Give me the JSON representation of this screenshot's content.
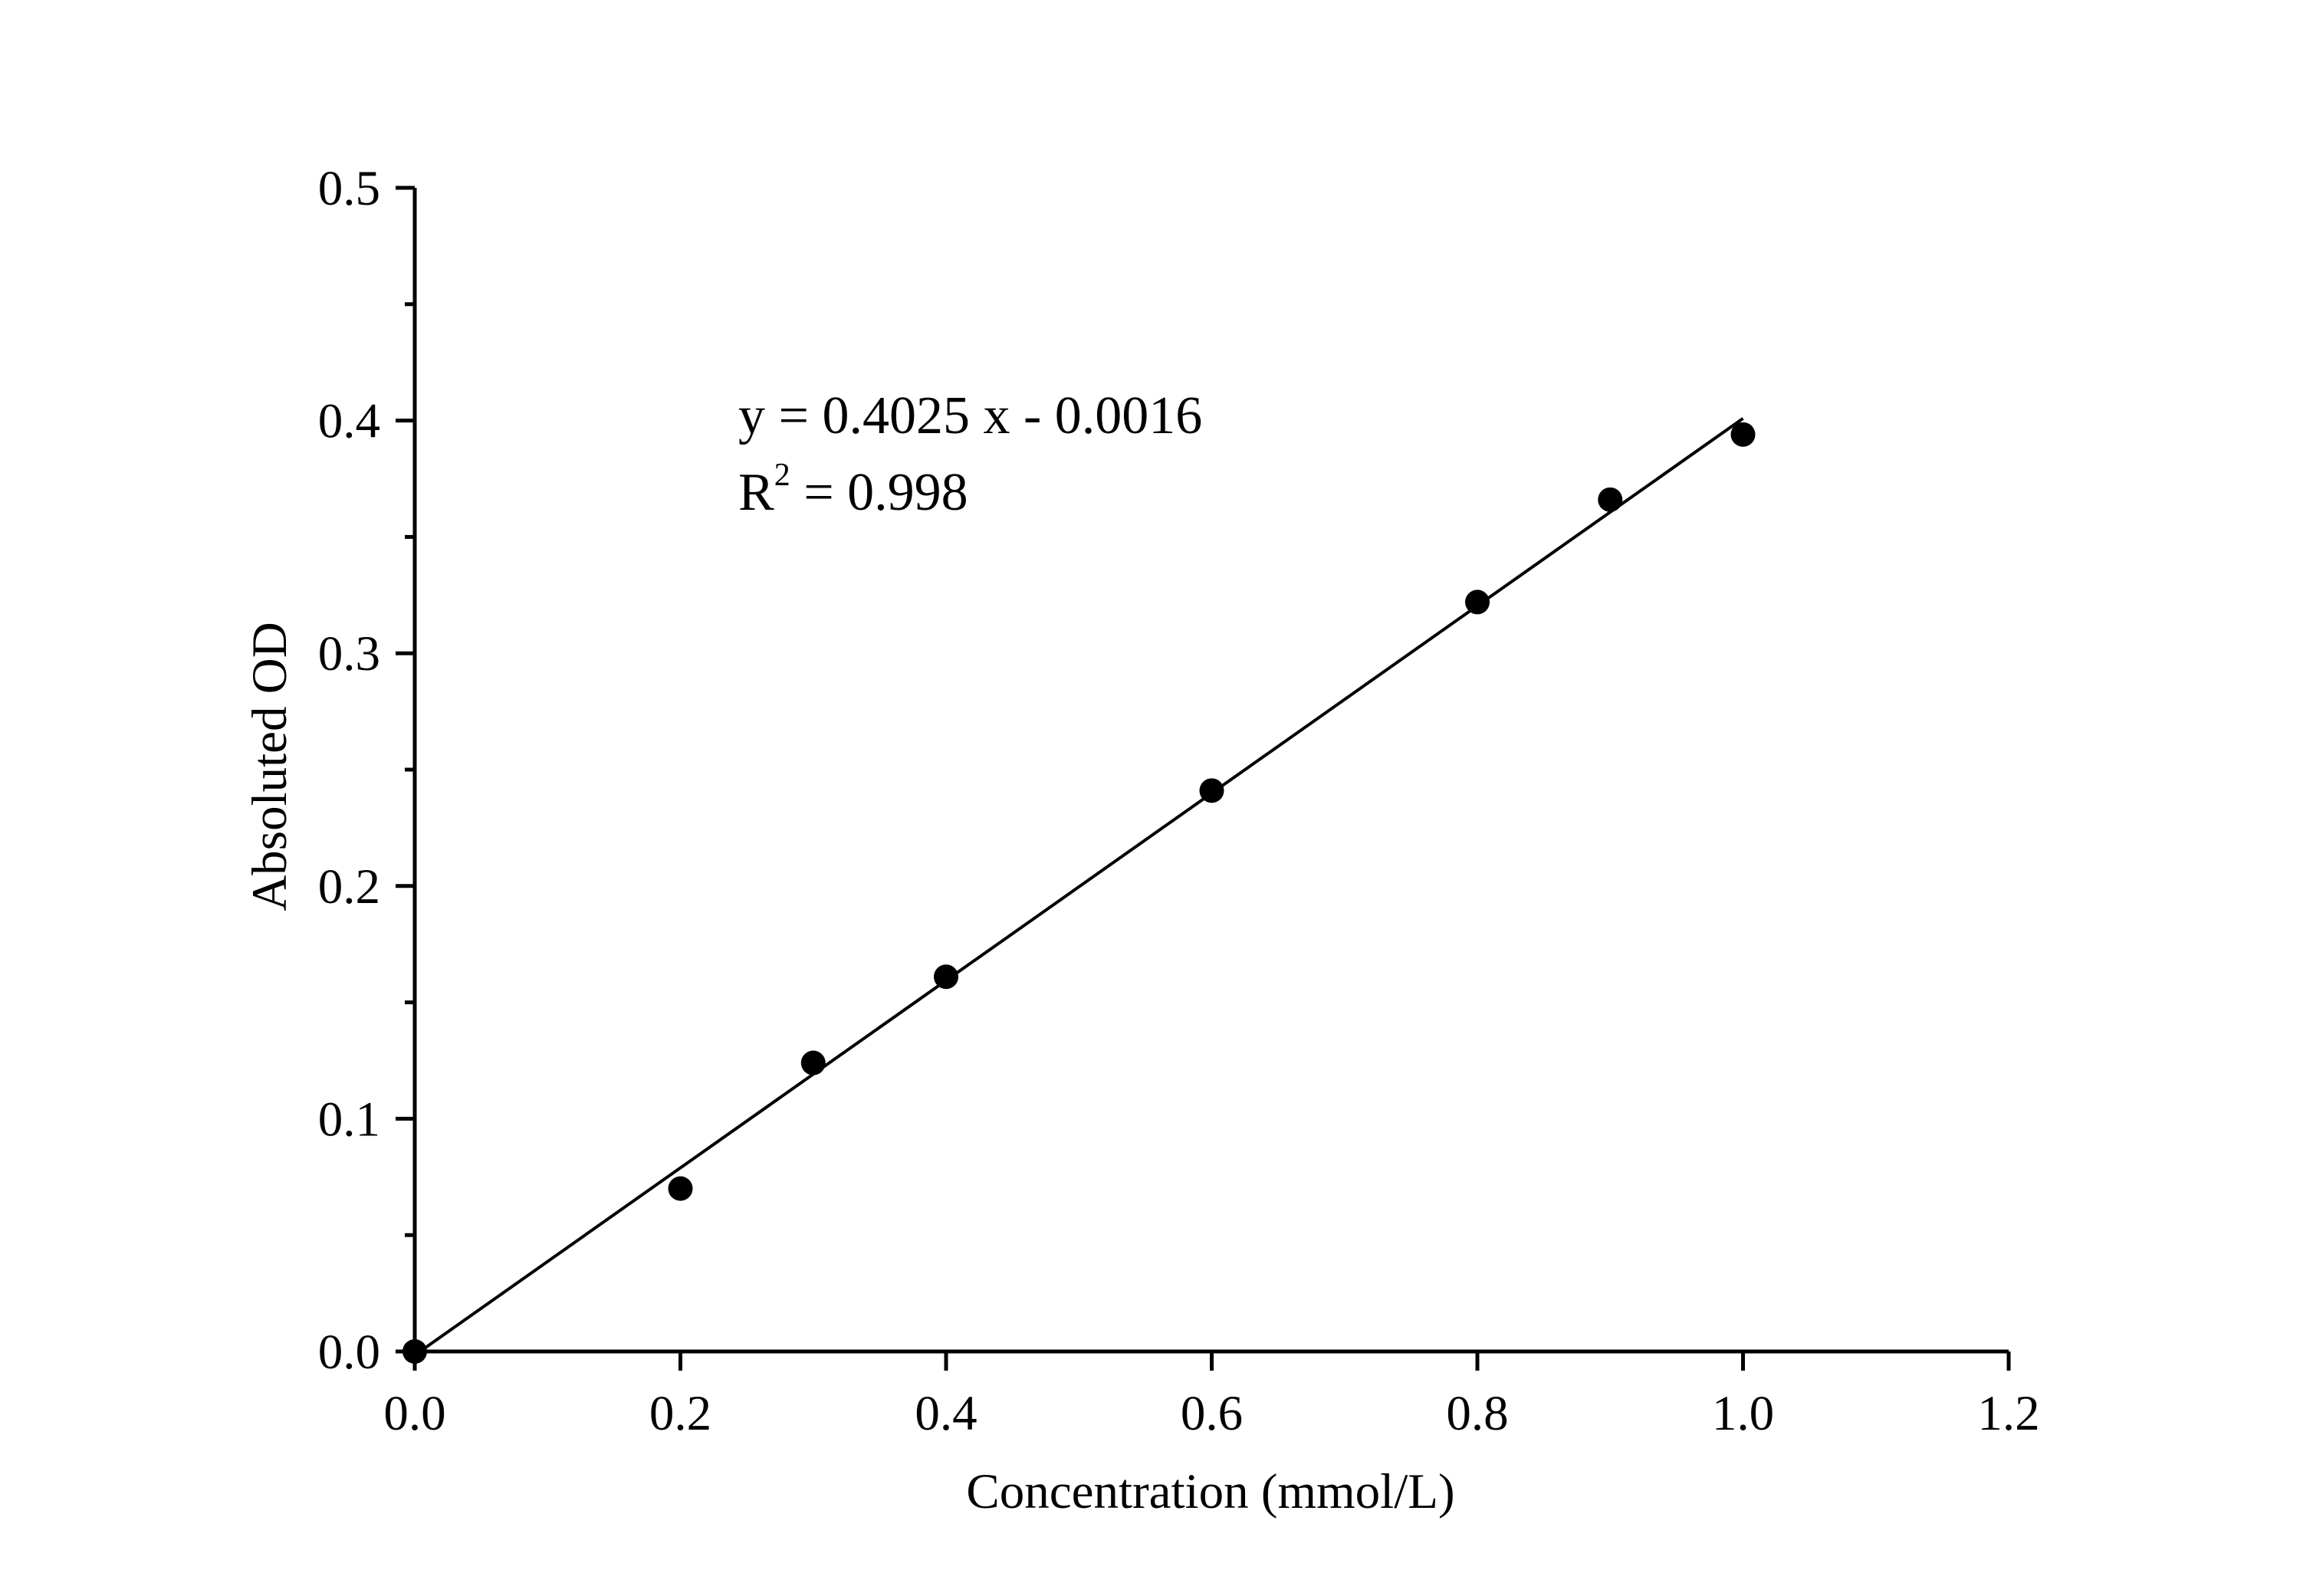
{
  "chart_data": {
    "type": "scatter",
    "title": "",
    "xlabel": "Concentration (mmol/L)",
    "ylabel": "Absoluted OD",
    "xlim": [
      0.0,
      1.2
    ],
    "ylim": [
      0.0,
      0.5
    ],
    "x_ticks": [
      "0.0",
      "0.2",
      "0.4",
      "0.6",
      "0.8",
      "1.0",
      "1.2"
    ],
    "y_ticks": [
      "0.0",
      "0.1",
      "0.2",
      "0.3",
      "0.4",
      "0.5"
    ],
    "grid": false,
    "legend": "none",
    "series": [
      {
        "x": [
          0.0,
          0.2,
          0.3,
          0.4,
          0.6,
          0.8,
          0.9,
          1.0
        ],
        "y": [
          0.0,
          0.07,
          0.124,
          0.161,
          0.241,
          0.322,
          0.366,
          0.394
        ]
      }
    ],
    "fit": {
      "slope": 0.4025,
      "intercept": -0.0016,
      "x_range": [
        0.0,
        1.0
      ]
    },
    "annotation": {
      "equation": "y = 0.4025 x - 0.0016",
      "r2_prefix": "R",
      "r2_superscript": "2",
      "r2_value": " = 0.998"
    },
    "colors": {
      "axis": "#000000",
      "points": "#000000",
      "fit_line": "#000000"
    }
  }
}
